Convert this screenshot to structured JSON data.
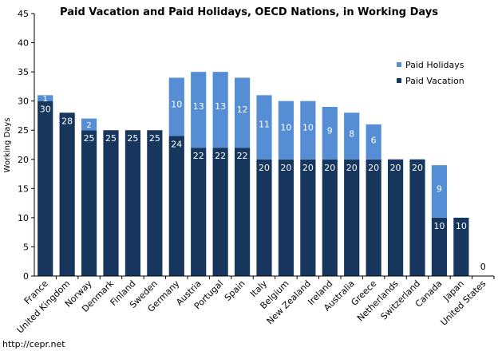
{
  "chart_data": {
    "type": "bar",
    "stacked": true,
    "title": "Paid Vacation and Paid Holidays, OECD Nations, in Working Days",
    "xlabel": "",
    "ylabel": "Working Days",
    "ylim": [
      0,
      45
    ],
    "yticks": [
      0,
      5,
      10,
      15,
      20,
      25,
      30,
      35,
      40,
      45
    ],
    "grid": false,
    "legend_position": "top-right",
    "categories": [
      "France",
      "United Kingdom",
      "Norway",
      "Denmark",
      "Finland",
      "Sweden",
      "Germany",
      "Austria",
      "Portugal",
      "Spain",
      "Italy",
      "Belgium",
      "New Zealand",
      "Ireland",
      "Australia",
      "Greece",
      "Netherlands",
      "Switzerland",
      "Canada",
      "Japan",
      "United States"
    ],
    "series": [
      {
        "name": "Paid Vacation",
        "color": "#17365d",
        "values": [
          30,
          28,
          25,
          25,
          25,
          25,
          24,
          22,
          22,
          22,
          20,
          20,
          20,
          20,
          20,
          20,
          20,
          20,
          10,
          10,
          0
        ]
      },
      {
        "name": "Paid Holidays",
        "color": "#558ed5",
        "values": [
          1,
          0,
          2,
          0,
          0,
          0,
          10,
          13,
          13,
          12,
          11,
          10,
          10,
          9,
          8,
          6,
          0,
          0,
          9,
          0,
          0
        ]
      }
    ],
    "legend_order": [
      "Paid Holidays",
      "Paid Vacation"
    ]
  },
  "source": "http://cepr.net"
}
